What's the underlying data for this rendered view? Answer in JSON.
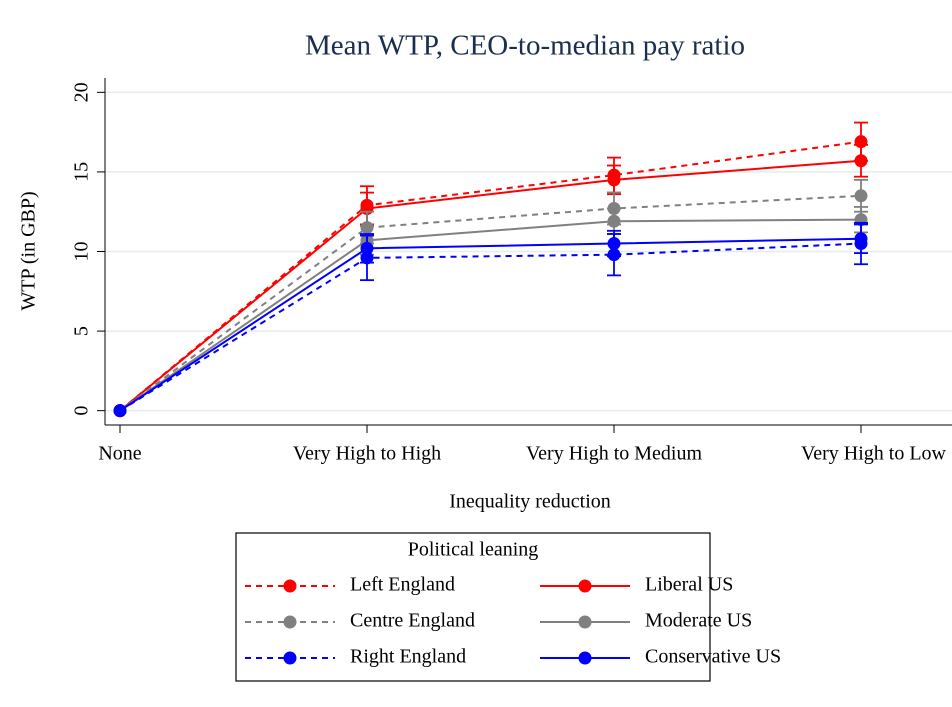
{
  "chart_data": {
    "type": "line",
    "title": "Mean WTP, CEO-to-median pay ratio",
    "xlabel": "Inequality reduction",
    "ylabel": "WTP (in GBP)",
    "categories": [
      "None",
      "Very High to High",
      "Very High to Medium",
      "Very High to Low"
    ],
    "ylim": [
      -0.9,
      20.9
    ],
    "yticks": [
      0,
      5,
      10,
      15,
      20
    ],
    "grid": true,
    "legend_title": "Political leaning",
    "legend": "bottom",
    "series": [
      {
        "name": "Left England",
        "color": "#ff0000",
        "style": "dashed",
        "values": [
          0,
          12.9,
          14.8,
          16.9
        ],
        "errors": [
          null,
          1.2,
          1.1,
          1.2
        ]
      },
      {
        "name": "Liberal US",
        "color": "#ff0000",
        "style": "solid",
        "values": [
          0,
          12.7,
          14.5,
          15.7
        ],
        "errors": [
          null,
          1.0,
          0.9,
          1.0
        ]
      },
      {
        "name": "Centre England",
        "color": "#808080",
        "style": "dashed",
        "values": [
          0,
          11.5,
          12.7,
          13.5
        ],
        "errors": [
          null,
          1.0,
          1.0,
          1.0
        ]
      },
      {
        "name": "Moderate US",
        "color": "#808080",
        "style": "solid",
        "values": [
          0,
          10.7,
          11.9,
          12.0
        ],
        "errors": [
          null,
          0.9,
          0.8,
          0.8
        ]
      },
      {
        "name": "Right England",
        "color": "#0000ff",
        "style": "dashed",
        "values": [
          0,
          9.6,
          9.8,
          10.5
        ],
        "errors": [
          null,
          1.4,
          1.3,
          1.3
        ]
      },
      {
        "name": "Conservative US",
        "color": "#0000ff",
        "style": "solid",
        "values": [
          0,
          10.2,
          10.5,
          10.8
        ],
        "errors": [
          null,
          0.9,
          0.8,
          0.9
        ]
      }
    ]
  }
}
